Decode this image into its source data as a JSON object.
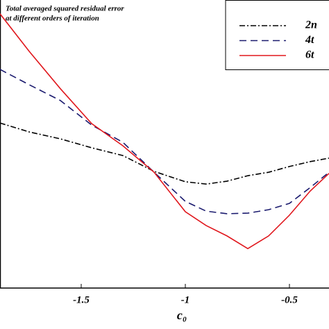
{
  "chart_data": {
    "type": "line",
    "title": [
      "Total averaged squared residual error",
      "at different orders of iteration"
    ],
    "xlabel": "c₀",
    "x": [
      -1.89,
      -1.75,
      -1.6,
      -1.45,
      -1.3,
      -1.15,
      -1.0,
      -0.9,
      -0.8,
      -0.7,
      -0.6,
      -0.5,
      -0.4,
      -0.31
    ],
    "xlim": [
      -1.89,
      -0.31
    ],
    "xticks": [
      -1.5,
      -1,
      -0.5
    ],
    "ylim": [
      0,
      1
    ],
    "series": [
      {
        "name": "2n",
        "color": "#000000",
        "dash": "8 3 2 3",
        "values": [
          0.573,
          0.542,
          0.518,
          0.487,
          0.46,
          0.405,
          0.369,
          0.361,
          0.371,
          0.39,
          0.402,
          0.422,
          0.439,
          0.451
        ]
      },
      {
        "name": "4t",
        "color": "#1a1a6e",
        "dash": "10 6",
        "values": [
          0.759,
          0.706,
          0.651,
          0.566,
          0.506,
          0.402,
          0.301,
          0.267,
          0.258,
          0.26,
          0.272,
          0.294,
          0.349,
          0.402
        ]
      },
      {
        "name": "6t",
        "color": "#e0161c",
        "dash": "none",
        "values": [
          0.952,
          0.822,
          0.692,
          0.571,
          0.494,
          0.402,
          0.265,
          0.217,
          0.181,
          0.137,
          0.181,
          0.253,
          0.337,
          0.398
        ]
      }
    ]
  }
}
